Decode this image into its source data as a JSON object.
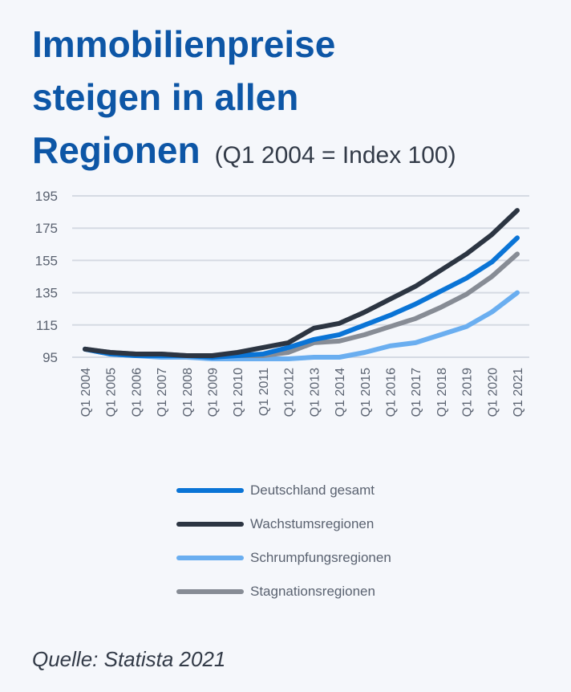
{
  "title_lines": [
    "Immobilienpreise",
    "steigen in allen",
    "Regionen"
  ],
  "subtitle": "(Q1 2004 = Index 100)",
  "source": "Quelle: Statista 2021",
  "chart_data": {
    "type": "line",
    "x": [
      "Q1 2004",
      "Q1 2005",
      "Q1 2006",
      "Q1 2007",
      "Q1 2008",
      "Q1 2009",
      "Q1 2010",
      "Q1 2011",
      "Q1 2012",
      "Q1 2013",
      "Q1 2014",
      "Q1 2015",
      "Q1 2016",
      "Q1 2017",
      "Q1 2018",
      "Q1 2019",
      "Q1 2020",
      "Q1 2021"
    ],
    "yticks": [
      95,
      115,
      135,
      155,
      175,
      195
    ],
    "ylim": [
      95,
      195
    ],
    "grid": true,
    "legend_position": "bottom",
    "series": [
      {
        "name": "Deutschland gesamt",
        "color": "#0a74d6",
        "values": [
          100,
          97,
          96,
          96,
          96,
          95,
          96,
          97,
          101,
          106,
          109,
          115,
          121,
          128,
          136,
          144,
          154,
          169
        ]
      },
      {
        "name": "Wachstumsregionen",
        "color": "#2c3542",
        "values": [
          100,
          98,
          97,
          97,
          96,
          96,
          98,
          101,
          104,
          113,
          116,
          123,
          131,
          139,
          149,
          159,
          171,
          186
        ]
      },
      {
        "name": "Schrumpfungsregionen",
        "color": "#6aaef0",
        "values": [
          100,
          97,
          96,
          95,
          95,
          94,
          94,
          94,
          94,
          95,
          95,
          98,
          102,
          104,
          109,
          114,
          123,
          135
        ]
      },
      {
        "name": "Stagnationsregionen",
        "color": "#878c95",
        "values": [
          100,
          98,
          97,
          97,
          96,
          96,
          96,
          96,
          98,
          104,
          105,
          109,
          114,
          119,
          126,
          134,
          145,
          159
        ]
      }
    ]
  }
}
